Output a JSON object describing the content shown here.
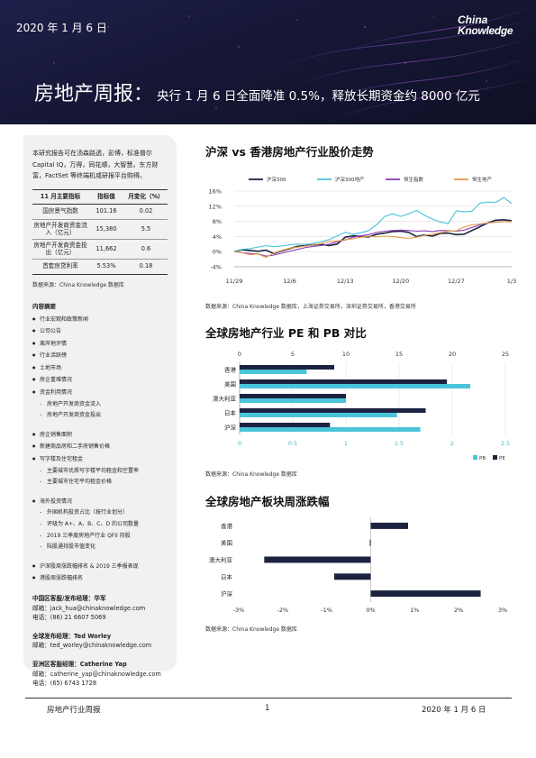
{
  "header": {
    "date": "2020 年 1 月 6 日",
    "logo_line1": "China",
    "logo_line2": "Knowledge",
    "title": "房地产周报：",
    "subtitle": "央行 1 月 6 日全面降准 0.5%，释放长期资金约 8000 亿元"
  },
  "sidebar": {
    "intro": "本研究报告可在汤森路透，彭博，标准普尔 Capital IQ，万得，同花顺，大智慧，东方财富，FactSet 等终端机或研报平台购得。",
    "table": {
      "headers": [
        "11 月主要指标",
        "指标值",
        "月变化（%）"
      ],
      "rows": [
        [
          "国房景气指数",
          "101.16",
          "0.02"
        ],
        [
          "房地产开发商资金流入（亿元）",
          "15,380",
          "5.5"
        ],
        [
          "房地产开发商资金投出（亿元）",
          "11,662",
          "0.6"
        ],
        [
          "首套房贷利率",
          "5.53%",
          "0.18"
        ]
      ]
    },
    "table_source": "数据来源：China Knowledge 数据库",
    "toc_title": "内容摘要",
    "toc": [
      {
        "level": 1,
        "text": "行业宏观和政策新闻"
      },
      {
        "level": 1,
        "text": "公司公告"
      },
      {
        "level": 1,
        "text": "离岸地评情"
      },
      {
        "level": 1,
        "text": "行业活跃榜"
      },
      {
        "level": 1,
        "text": "土地市场"
      },
      {
        "level": 1,
        "text": "房企重难情况"
      },
      {
        "level": 1,
        "text": "资金利用情况"
      },
      {
        "level": 2,
        "text": "房地产开发商资金流入"
      },
      {
        "level": 2,
        "text": "房地产开发商资金投出"
      },
      {
        "level": 1,
        "text": "房企销售面积",
        "gap": true
      },
      {
        "level": 1,
        "text": "新建商品房和二手房销售价格"
      },
      {
        "level": 1,
        "text": "写字楼及住宅租金"
      },
      {
        "level": 2,
        "text": "主要城市优质写字楼平均租金和空置率"
      },
      {
        "level": 2,
        "text": "主要城市住宅平均租金价格"
      },
      {
        "level": 1,
        "text": "海外投资情况",
        "gap": true
      },
      {
        "level": 2,
        "text": "外国机构投资占比（按行业划分）"
      },
      {
        "level": 2,
        "text": "评级为 A+、A、B、C、D 的公司数量"
      },
      {
        "level": 2,
        "text": "2019 三季度房地产行业 QFII 持股"
      },
      {
        "level": 2,
        "text": "陆股通持股市值变化"
      },
      {
        "level": 1,
        "text": "沪深股周涨跌幅排名 & 2019 三季报表现",
        "gap": true
      },
      {
        "level": 1,
        "text": "港股周涨跌幅排名"
      }
    ],
    "contacts": [
      {
        "role": "中国区客服/发布经理：华军",
        "email": "邮箱：jack_hua@chinaknowledge.com",
        "phone": "电话：(86) 21 6607 5069"
      },
      {
        "role": "全球发布经理：Ted Worley",
        "email": "邮箱：ted_worley@chinaknowledge.com",
        "phone": ""
      },
      {
        "role": "亚洲区客服经理：Catherine Yap",
        "email": "邮箱：catherine_yap@chinaknowledge.com",
        "phone": "电话：(65) 6743 1728"
      }
    ]
  },
  "sections": {
    "s1_title": "沪深  vs  香港房地产行业股价走势",
    "s1_source": "数据来源：China Knowledge 数据库，上海证券交易所，深圳证券交易所，香港交易所",
    "s2_title": "全球房地产行业  PE  和  PB  对比",
    "s2_source": "数据来源：China Knowledge 数据库",
    "s3_title": "全球房地产板块周涨跌幅",
    "s3_source": "数据来源：China Knowledge 数据库"
  },
  "footer": {
    "left": "房地产行业周报",
    "page": "1",
    "right": "2020 年 1 月 6 日"
  },
  "chart_data": [
    {
      "type": "line",
      "x": [
        "11/29",
        "11/30",
        "12/1",
        "12/2",
        "12/3",
        "12/4",
        "12/5",
        "12/6",
        "12/7",
        "12/8",
        "12/9",
        "12/10",
        "12/11",
        "12/12",
        "12/13",
        "12/14",
        "12/15",
        "12/16",
        "12/17",
        "12/18",
        "12/19",
        "12/20",
        "12/21",
        "12/22",
        "12/23",
        "12/24",
        "12/25",
        "12/26",
        "12/27",
        "12/28",
        "12/29",
        "12/30",
        "12/31",
        "1/1",
        "1/2",
        "1/3"
      ],
      "x_tick_labels": [
        "11/29",
        "12/6",
        "12/13",
        "12/20",
        "12/27",
        "1/3"
      ],
      "ylim": [
        -4,
        16
      ],
      "y_ticks": [
        -4,
        0,
        4,
        8,
        12,
        16
      ],
      "y_tick_labels": [
        "-4%",
        "0%",
        "4%",
        "8%",
        "12%",
        "16%"
      ],
      "grid": true,
      "legend_position": "top",
      "series": [
        {
          "name": "沪深300",
          "color": "#1c2340",
          "values": [
            0,
            0.5,
            0.3,
            0.1,
            0.4,
            -0.5,
            0.2,
            0.8,
            1.4,
            1.6,
            1.8,
            1.9,
            1.6,
            2.0,
            3.8,
            4.2,
            4.0,
            3.9,
            4.6,
            4.9,
            5.3,
            5.4,
            5.1,
            4.0,
            4.4,
            4.1,
            4.8,
            4.9,
            4.5,
            4.6,
            5.6,
            6.6,
            7.6,
            8.3,
            8.4,
            8.2
          ]
        },
        {
          "name": "沪深300地产",
          "color": "#49c4d8",
          "values": [
            0,
            0.6,
            0.8,
            1.2,
            1.6,
            1.3,
            1.5,
            1.8,
            2.0,
            1.9,
            2.2,
            2.6,
            3.2,
            4.2,
            5.1,
            4.6,
            5.0,
            5.6,
            7.2,
            9.3,
            10.0,
            9.3,
            10.0,
            10.9,
            9.6,
            8.6,
            7.8,
            7.4,
            10.8,
            10.5,
            10.7,
            12.8,
            13.1,
            13.0,
            14.3,
            12.7
          ]
        },
        {
          "name": "恒生指数",
          "color": "#8b3fb5",
          "values": [
            0,
            -0.3,
            -0.5,
            -0.6,
            -1.2,
            -0.9,
            -0.4,
            0.1,
            0.6,
            1.1,
            1.4,
            1.6,
            2.0,
            2.6,
            3.1,
            3.8,
            4.2,
            4.5,
            5.1,
            5.4,
            5.6,
            5.7,
            5.6,
            5.4,
            5.5,
            5.3,
            5.6,
            5.5,
            5.4,
            5.7,
            6.4,
            7.1,
            7.6,
            7.8,
            7.9,
            7.9
          ]
        },
        {
          "name": "恒生地产",
          "color": "#e39a49",
          "values": [
            0,
            -0.3,
            -0.8,
            -0.6,
            -1.5,
            -0.4,
            0.3,
            0.9,
            1.2,
            1.5,
            1.8,
            2.1,
            2.7,
            2.8,
            3.2,
            3.4,
            3.8,
            4.1,
            3.9,
            4.1,
            4.0,
            3.7,
            3.5,
            3.8,
            4.3,
            4.6,
            5.0,
            5.4,
            5.5,
            6.5,
            7.1,
            7.3,
            7.6,
            7.8,
            7.9,
            8.0
          ]
        }
      ]
    },
    {
      "type": "bar",
      "orientation": "horizontal",
      "categories": [
        "香港",
        "美国",
        "澳大利亚",
        "日本",
        "沪深"
      ],
      "top_axis": {
        "range": [
          0,
          25
        ],
        "ticks": [
          0,
          5,
          10,
          15,
          20,
          25
        ]
      },
      "bottom_axis": {
        "range": [
          0,
          2.5
        ],
        "ticks": [
          "0",
          "0.5",
          "1",
          "1.5",
          "2",
          "2.5"
        ]
      },
      "legend_position": "bottom-right",
      "series": [
        {
          "name": "PB",
          "color": "#49c4d8",
          "axis": "bottom",
          "values": [
            0.63,
            2.17,
            1.0,
            1.48,
            1.7
          ]
        },
        {
          "name": "PE",
          "color": "#1c2340",
          "axis": "top",
          "values": [
            8.9,
            19.5,
            10.0,
            17.5,
            8.5
          ]
        }
      ]
    },
    {
      "type": "bar",
      "orientation": "horizontal",
      "categories": [
        "香港",
        "美国",
        "澳大利亚",
        "日本",
        "沪深"
      ],
      "xlim": [
        -3,
        3
      ],
      "x_ticks": [
        "-3%",
        "-2%",
        "-1%",
        "0%",
        "1%",
        "2%",
        "3%"
      ],
      "series": [
        {
          "name": "",
          "color": "#1c2340",
          "values": [
            0.85,
            -0.02,
            -2.42,
            -0.83,
            2.5
          ]
        }
      ]
    }
  ]
}
